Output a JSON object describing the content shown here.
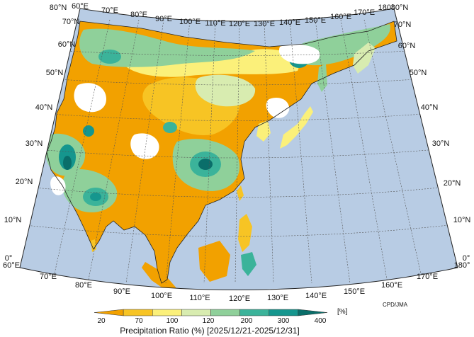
{
  "map": {
    "credit": "CPD/JMA",
    "lon_labels_top": [
      "60°E",
      "70°E",
      "80°E",
      "90°E",
      "100°E",
      "110°E",
      "120°E",
      "130°E",
      "140°E",
      "150°E",
      "160°E",
      "170°E",
      "180°"
    ],
    "lon_labels_bottom": [
      "60°E",
      "70°E",
      "80°E",
      "90°E",
      "100°E",
      "110°E",
      "120°E",
      "130°E",
      "140°E",
      "150°E",
      "160°E",
      "170°E",
      "180°"
    ],
    "lat_labels_left": [
      "0°",
      "10°N",
      "20°N",
      "30°N",
      "40°N",
      "50°N",
      "60°N",
      "70°N",
      "80°N"
    ],
    "lat_labels_right": [
      "0°",
      "10°N",
      "20°N",
      "30°N",
      "40°N",
      "50°N",
      "60°N",
      "70°N",
      "80°N"
    ],
    "colors": {
      "ocean": "#b8cce4",
      "land_nodata": "#ffffff",
      "coast": "#222222",
      "graticule": "#555555"
    }
  },
  "legend": {
    "title": "Precipitation Ratio (%) [2025/12/21-2025/12/31]",
    "unit": "[%]",
    "tick_labels": [
      "20",
      "70",
      "100",
      "120",
      "200",
      "300",
      "400"
    ],
    "bins": [
      {
        "range": "<20",
        "color": "#f2a100"
      },
      {
        "range": "20-70",
        "color": "#f7c424"
      },
      {
        "range": "70-100",
        "color": "#fbf07a"
      },
      {
        "range": "100-120",
        "color": "#d8ecb0"
      },
      {
        "range": "120-200",
        "color": "#8fd09a"
      },
      {
        "range": "200-300",
        "color": "#3bb39a"
      },
      {
        "range": "300-400",
        "color": "#15968e"
      },
      {
        "range": ">400",
        "color": "#0a6e6a"
      }
    ]
  }
}
